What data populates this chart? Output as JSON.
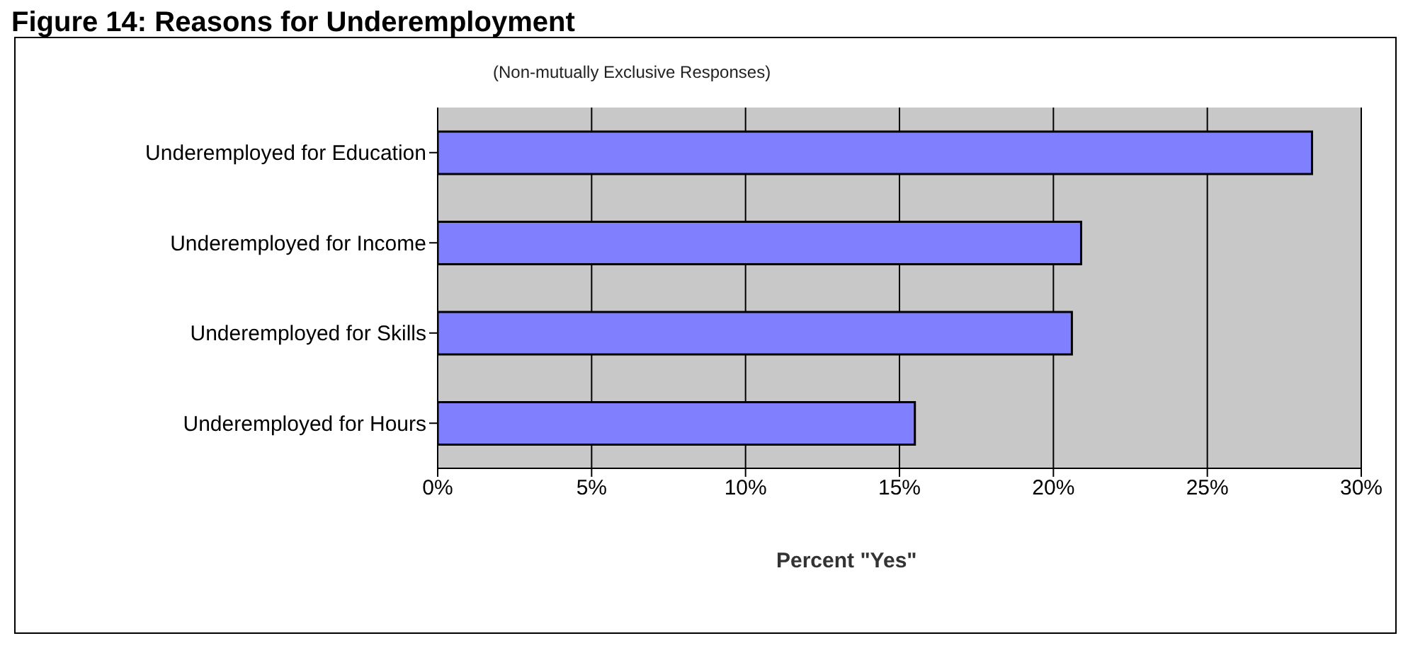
{
  "chart_data": {
    "type": "bar",
    "orientation": "horizontal",
    "title": "Figure 14: Reasons for Underemployment",
    "subtitle": "(Non-mutually Exclusive Responses)",
    "xlabel": "Percent \"Yes\"",
    "categories": [
      "Underemployed for Education",
      "Underemployed for Income",
      "Underemployed for Skills",
      "Underemployed for Hours"
    ],
    "values": [
      28.4,
      20.9,
      20.6,
      15.5
    ],
    "color": "#8080ff",
    "xlim": [
      0,
      30
    ],
    "xticks": [
      {
        "value": 0,
        "label": "0%"
      },
      {
        "value": 5,
        "label": "5%"
      },
      {
        "value": 10,
        "label": "10%"
      },
      {
        "value": 15,
        "label": "15%"
      },
      {
        "value": 20,
        "label": "20%"
      },
      {
        "value": 25,
        "label": "25%"
      },
      {
        "value": 30,
        "label": "30%"
      }
    ],
    "grid": "x"
  }
}
